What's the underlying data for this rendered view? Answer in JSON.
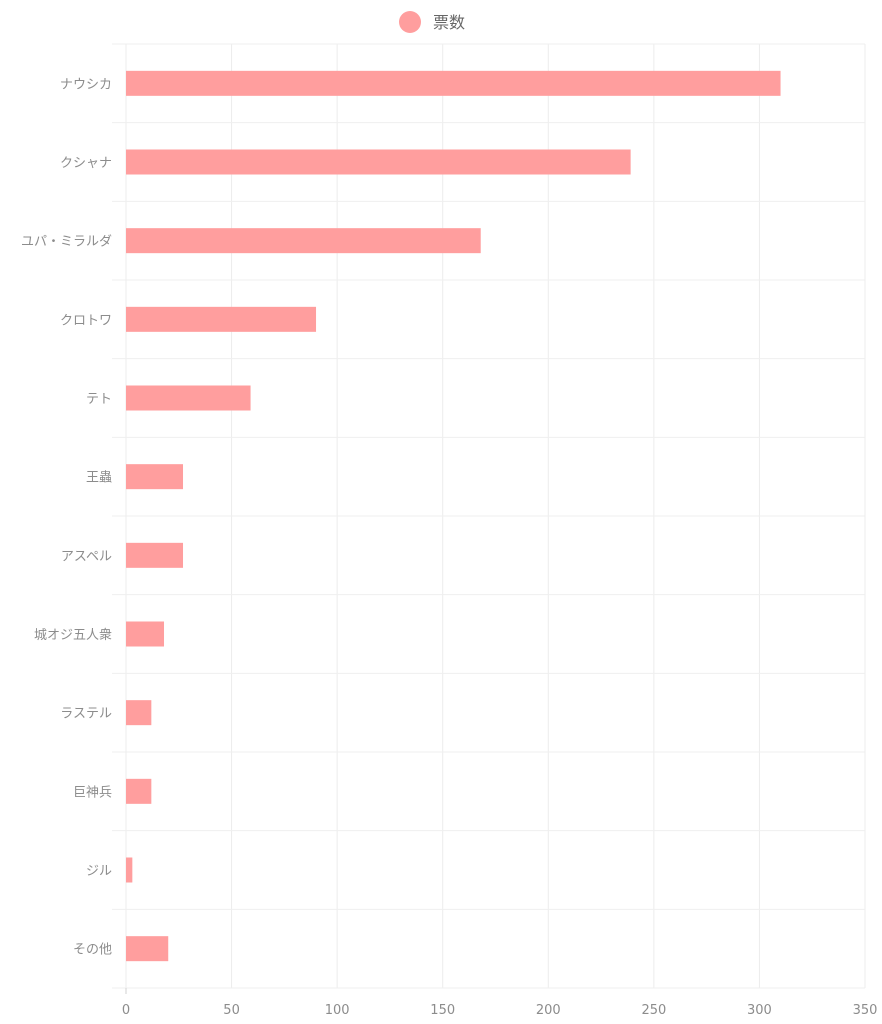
{
  "chart_data": {
    "type": "bar",
    "orientation": "horizontal",
    "categories": [
      "ナウシカ",
      "クシャナ",
      "ユパ・ミラルダ",
      "クロトワ",
      "テト",
      "王蟲",
      "アスペル",
      "城オジ五人衆",
      "ラステル",
      "巨神兵",
      "ジル",
      "その他"
    ],
    "series": [
      {
        "name": "票数",
        "values": [
          310,
          239,
          168,
          90,
          59,
          27,
          27,
          18,
          12,
          12,
          3,
          20
        ],
        "color": "#ff9e9e"
      }
    ],
    "xlim": [
      0,
      350
    ],
    "xticks": [
      0,
      50,
      100,
      150,
      200,
      250,
      300,
      350
    ],
    "grid": true,
    "legend_position": "top-center"
  }
}
